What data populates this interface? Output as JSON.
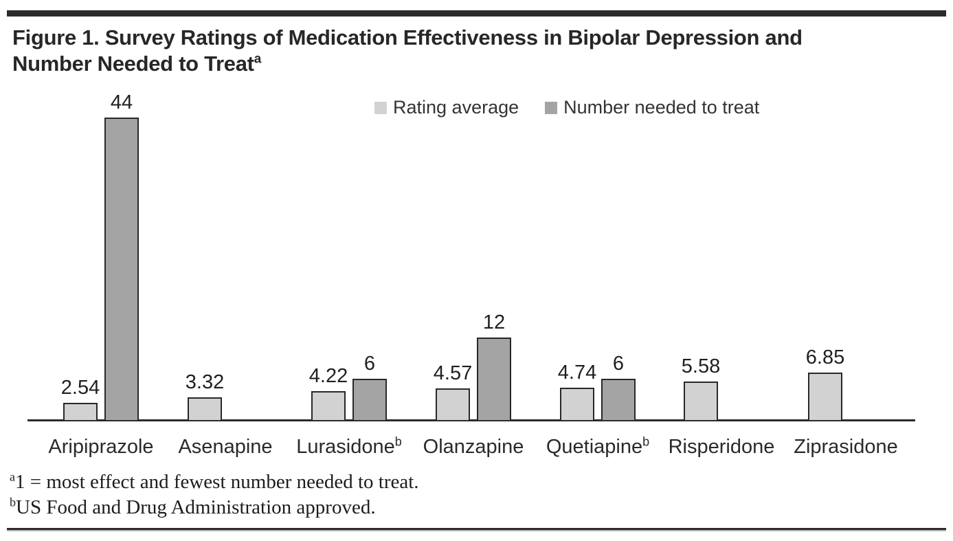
{
  "figure": {
    "title_line1": "Figure 1. Survey Ratings of Medication Effectiveness in Bipolar Depression and",
    "title_line2": "Number Needed to Treat",
    "title_superscript": "a",
    "footnotes": [
      {
        "marker": "a",
        "text": "1 = most effect and fewest number needed to treat."
      },
      {
        "marker": "b",
        "text": "US Food and Drug Administration approved."
      }
    ]
  },
  "chart_data": {
    "type": "bar",
    "title": "Survey Ratings of Medication Effectiveness in Bipolar Depression and Number Needed to Treat",
    "categories": [
      "Aripiprazole",
      "Asenapine",
      "Lurasidone",
      "Olanzapine",
      "Quetiapine",
      "Risperidone",
      "Ziprasidone"
    ],
    "category_superscripts": [
      "",
      "",
      "b",
      "",
      "b",
      "",
      ""
    ],
    "series": [
      {
        "name": "Rating average",
        "color": "#d2d2d2",
        "values": [
          2.54,
          3.32,
          4.22,
          4.57,
          4.74,
          5.58,
          6.85
        ],
        "labels": [
          "2.54",
          "3.32",
          "4.22",
          "4.57",
          "4.74",
          "5.58",
          "6.85"
        ]
      },
      {
        "name": "Number needed to treat",
        "color": "#a4a4a4",
        "values": [
          44,
          null,
          6,
          12,
          6,
          null,
          null
        ],
        "labels": [
          "44",
          null,
          "6",
          "12",
          "6",
          null,
          null
        ]
      }
    ],
    "xlabel": "",
    "ylabel": "",
    "ylim": [
      0,
      44
    ],
    "grid": false,
    "y_axis_visible": false,
    "legend_position": "top",
    "axis_color": "#2b2b2b",
    "value_labels": true
  }
}
